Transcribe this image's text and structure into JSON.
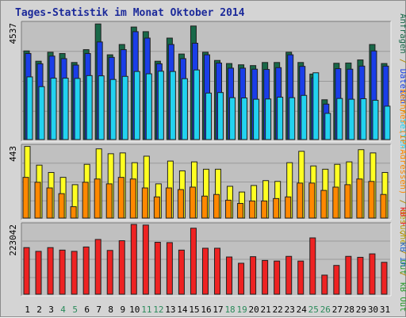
{
  "title": "Tages-Statistik im Monat Oktober 2014",
  "chart_data": [
    {
      "type": "bar",
      "panel": "top",
      "ymax_label": "4537",
      "ylim": [
        0,
        4537
      ],
      "categories": [
        "1",
        "2",
        "3",
        "4",
        "5",
        "6",
        "7",
        "8",
        "9",
        "10",
        "11",
        "12",
        "13",
        "14",
        "15",
        "16",
        "17",
        "18",
        "19",
        "20",
        "21",
        "22",
        "23",
        "24",
        "25",
        "26",
        "27",
        "28",
        "29",
        "30",
        "31"
      ],
      "series": [
        {
          "name": "Anfragen",
          "color": "#186848",
          "values": [
            3450,
            3050,
            3400,
            3350,
            3000,
            3500,
            4500,
            3300,
            3700,
            4380,
            4200,
            3050,
            3950,
            3330,
            4420,
            3400,
            3080,
            2960,
            2910,
            2880,
            3000,
            3000,
            3400,
            3000,
            2550,
            1550,
            2970,
            2980,
            3100,
            3700,
            2960
          ]
        },
        {
          "name": "Dateien",
          "color": "#1a3ee8",
          "values": [
            3350,
            2950,
            3250,
            3150,
            2900,
            3350,
            3800,
            3200,
            3500,
            4200,
            3950,
            2950,
            3700,
            3150,
            3750,
            3300,
            2980,
            2780,
            2780,
            2740,
            2730,
            2800,
            3300,
            2850,
            2400,
            1380,
            2760,
            2740,
            2860,
            3450,
            2860
          ]
        },
        {
          "name": "Seiten",
          "color": "#22d2f0",
          "values": [
            2440,
            2060,
            2390,
            2390,
            2380,
            2490,
            2480,
            2340,
            2460,
            2650,
            2560,
            2660,
            2650,
            2370,
            2710,
            1810,
            1830,
            1630,
            1620,
            1570,
            1580,
            1650,
            1630,
            1720,
            2600,
            1020,
            1600,
            1570,
            1590,
            1530,
            1300
          ]
        }
      ]
    },
    {
      "type": "bar",
      "panel": "middle",
      "ymax_label": "443",
      "ylim": [
        0,
        443
      ],
      "categories": [
        "1",
        "2",
        "3",
        "4",
        "5",
        "6",
        "7",
        "8",
        "9",
        "10",
        "11",
        "12",
        "13",
        "14",
        "15",
        "16",
        "17",
        "18",
        "19",
        "20",
        "21",
        "22",
        "23",
        "24",
        "25",
        "26",
        "27",
        "28",
        "29",
        "30",
        "31"
      ],
      "series": [
        {
          "name": "Rechner (IP-Adressen)",
          "color": "#ffff22",
          "values": [
            440,
            325,
            280,
            250,
            205,
            330,
            425,
            395,
            400,
            340,
            380,
            210,
            350,
            290,
            345,
            300,
            300,
            195,
            160,
            200,
            230,
            225,
            340,
            410,
            320,
            300,
            330,
            345,
            420,
            400,
            280
          ]
        },
        {
          "name": "Besuche",
          "color": "#ff8800",
          "values": [
            250,
            220,
            185,
            150,
            70,
            220,
            240,
            210,
            250,
            240,
            185,
            130,
            185,
            175,
            190,
            135,
            145,
            110,
            90,
            105,
            105,
            120,
            130,
            215,
            215,
            170,
            190,
            205,
            240,
            225,
            145
          ]
        }
      ]
    },
    {
      "type": "bar",
      "panel": "bottom",
      "ymax_label": "223042",
      "ylim": [
        0,
        223042
      ],
      "categories": [
        "1",
        "2",
        "3",
        "4",
        "5",
        "6",
        "7",
        "8",
        "9",
        "10",
        "11",
        "12",
        "13",
        "14",
        "15",
        "16",
        "17",
        "18",
        "19",
        "20",
        "21",
        "22",
        "23",
        "24",
        "25",
        "26",
        "27",
        "28",
        "29",
        "30",
        "31"
      ],
      "series": [
        {
          "name": "kB F",
          "color": "#ee2222",
          "values": [
            149000,
            137000,
            149000,
            141000,
            137000,
            151000,
            175000,
            140000,
            171000,
            223042,
            221000,
            166000,
            165000,
            141000,
            211000,
            147000,
            147000,
            119000,
            99000,
            120000,
            108000,
            106000,
            121000,
            106000,
            180000,
            61000,
            92000,
            121000,
            118000,
            129000,
            102000
          ]
        }
      ]
    }
  ],
  "right_legend": {
    "top": [
      {
        "text": "Anfragen",
        "color": "#186848"
      },
      {
        "text": " / ",
        "color": "#b08800"
      },
      {
        "text": "Dateien",
        "color": "#1a3ee8"
      },
      {
        "text": " / ",
        "color": "#b08800"
      },
      {
        "text": "Seiten",
        "color": "#22d2f0"
      }
    ],
    "middle": [
      {
        "text": "Rechner (IP-Adressen)",
        "color": "#ff8800"
      },
      {
        "text": " / ",
        "color": "#b08800"
      },
      {
        "text": "Besuche",
        "color": "#b8a000"
      },
      {
        "text": " / ",
        "color": "#b08800"
      },
      {
        "text": "Out",
        "color": "#2a9a2a"
      }
    ],
    "bottom": [
      {
        "text": "kB F",
        "color": "#ee2222"
      },
      {
        "text": " / ",
        "color": "#b08800"
      },
      {
        "text": "kB In",
        "color": "#2a6ad0"
      },
      {
        "text": " / ",
        "color": "#b08800"
      },
      {
        "text": "kB Out",
        "color": "#2a9a2a"
      }
    ]
  },
  "weekend_days": [
    "4",
    "5",
    "11",
    "12",
    "18",
    "19",
    "25",
    "26"
  ],
  "colors": {
    "weekday_label": "#000000",
    "weekend_label": "#2a8a5a",
    "plot_bg": "#c0c0c0",
    "frame_bg": "#d4d4d4",
    "title": "#1c2a9a"
  }
}
